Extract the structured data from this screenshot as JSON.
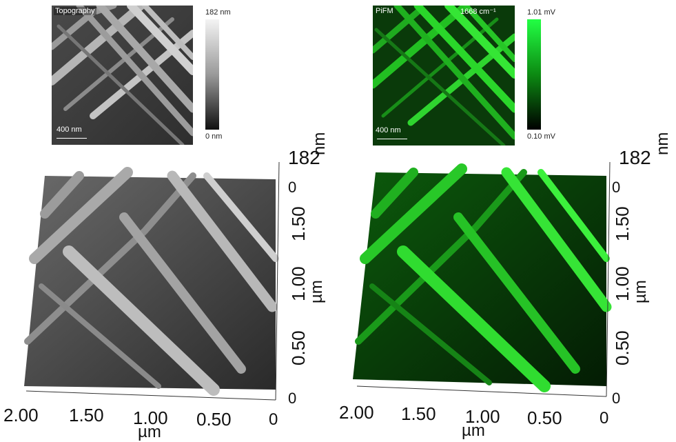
{
  "topo_map": {
    "label": "Topography",
    "scale_label": "400 nm",
    "cbar_max": "182 nm",
    "cbar_min": "0 nm"
  },
  "pifm_map": {
    "label": "PiFM",
    "wavenumber": "1668 cm⁻¹",
    "scale_label": "400 nm",
    "cbar_max": "1.01 mV",
    "cbar_min": "0.10 mV"
  },
  "topo_3d": {
    "z_max": "182",
    "z_zero": "0",
    "z_unit": "nm",
    "y_ticks": [
      "1.50",
      "1.00",
      "0.50",
      "0"
    ],
    "y_unit": "µm",
    "x_ticks": [
      "2.00",
      "1.50",
      "1.00",
      "0.50",
      "0"
    ],
    "x_unit": "µm"
  },
  "pifm_3d": {
    "z_max": "182",
    "z_zero": "0",
    "z_unit": "nm",
    "y_ticks": [
      "1.50",
      "1.00",
      "0.50",
      "0"
    ],
    "y_unit": "µm",
    "x_ticks": [
      "2.00",
      "1.50",
      "1.00",
      "0.50",
      "0"
    ],
    "x_unit": "µm"
  },
  "colors": {
    "pifm_high": "#00ff33",
    "pifm_low": "#000000",
    "topo_high": "#f2f2f2",
    "topo_low": "#000000"
  }
}
